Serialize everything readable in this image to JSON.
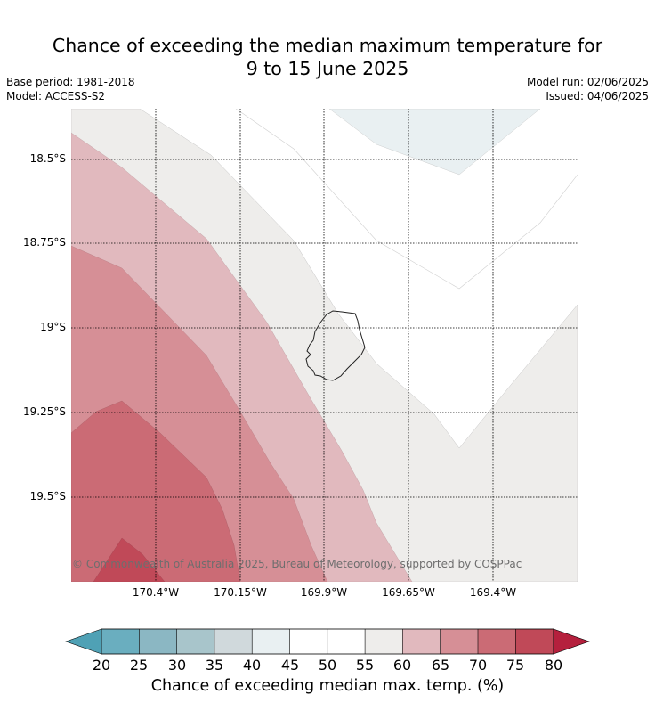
{
  "title": {
    "line1": "Chance of exceeding the median maximum temperature for",
    "line2": "9 to 15 June 2025"
  },
  "meta": {
    "base_period": "Base period: 1981-2018",
    "model": "Model: ACCESS-S2",
    "model_run": "Model run: 02/06/2025",
    "issued": "Issued: 04/06/2025"
  },
  "map": {
    "copyright": "© Commonwealth of Australia 2025, Bureau of Meteorology, supported by COSPPac",
    "lat_labels": [
      "18.5°S",
      "18.75°S",
      "19°S",
      "19.25°S",
      "19.5°S"
    ],
    "lon_labels": [
      "170.4°W",
      "170.15°W",
      "169.9°W",
      "169.65°W",
      "169.4°W"
    ],
    "island": "Niue"
  },
  "colorbar": {
    "ticks": [
      "20",
      "25",
      "30",
      "35",
      "40",
      "45",
      "50",
      "55",
      "60",
      "65",
      "70",
      "75",
      "80"
    ],
    "label": "Chance of exceeding median max. temp. (%)",
    "colors": {
      "under": "#4fa1b5",
      "20-25": "#6aaebf",
      "25-30": "#8bb7c3",
      "30-35": "#a8c5cb",
      "35-40": "#d0d9dc",
      "40-45": "#e9f0f2",
      "45-50": "#ffffff",
      "50-55": "#ffffff",
      "55-60": "#eeedeb",
      "60-65": "#e1b9be",
      "65-70": "#d68f96",
      "70-75": "#cb6b75",
      "75-80": "#c04958",
      "over": "#b5203d"
    }
  }
}
